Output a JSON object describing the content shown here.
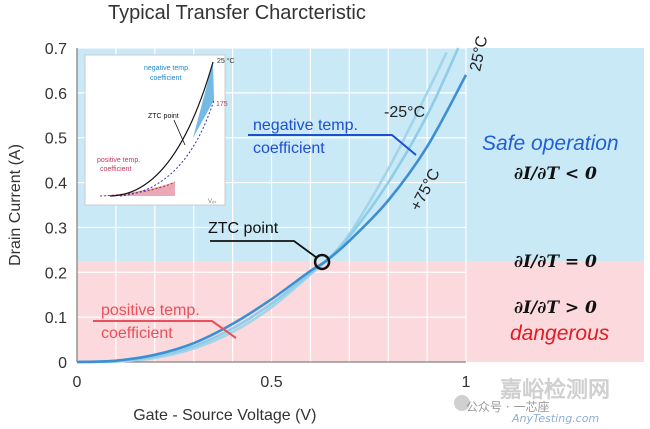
{
  "chart_data": {
    "type": "line",
    "title": "Typical Transfer Charcteristic",
    "xlabel": "Gate - Source Voltage (V)",
    "ylabel": "Drain Current (A)",
    "xlim": [
      0,
      1
    ],
    "ylim": [
      0,
      0.7
    ],
    "x_ticks": [
      {
        "v": 0,
        "label": "0"
      },
      {
        "v": 0.5,
        "label": "0.5"
      },
      {
        "v": 1,
        "label": "1"
      }
    ],
    "y_ticks": [
      {
        "v": 0,
        "label": "0"
      },
      {
        "v": 0.1,
        "label": "0.1"
      },
      {
        "v": 0.2,
        "label": "0.2"
      },
      {
        "v": 0.3,
        "label": "0.3"
      },
      {
        "v": 0.4,
        "label": "0.4"
      },
      {
        "v": 0.5,
        "label": "0.5"
      },
      {
        "v": 0.6,
        "label": "0.6"
      },
      {
        "v": 0.7,
        "label": "0.7"
      }
    ],
    "grid": true,
    "regions": [
      {
        "from": 0.225,
        "to": 0.7,
        "color": "#c9e9f7"
      },
      {
        "from": 0,
        "to": 0.225,
        "color": "#fbd9dc"
      }
    ],
    "series": [
      {
        "name": "25°C",
        "color": "#8ecde8",
        "points": [
          [
            0,
            0
          ],
          [
            0.1,
            0.002
          ],
          [
            0.2,
            0.012
          ],
          [
            0.3,
            0.035
          ],
          [
            0.4,
            0.075
          ],
          [
            0.5,
            0.13
          ],
          [
            0.6,
            0.198
          ],
          [
            0.64,
            0.225
          ],
          [
            0.7,
            0.28
          ],
          [
            0.8,
            0.4
          ],
          [
            0.9,
            0.55
          ],
          [
            0.98,
            0.7
          ]
        ]
      },
      {
        "name": "-25°C",
        "color": "#3d8fd3",
        "points": [
          [
            0,
            0
          ],
          [
            0.1,
            0.003
          ],
          [
            0.2,
            0.016
          ],
          [
            0.3,
            0.042
          ],
          [
            0.4,
            0.085
          ],
          [
            0.5,
            0.14
          ],
          [
            0.6,
            0.203
          ],
          [
            0.64,
            0.225
          ],
          [
            0.7,
            0.27
          ],
          [
            0.8,
            0.36
          ],
          [
            0.9,
            0.48
          ],
          [
            1.0,
            0.64
          ]
        ]
      },
      {
        "name": "+75°C",
        "color": "#a3d4ea",
        "points": [
          [
            0,
            0
          ],
          [
            0.1,
            0.001
          ],
          [
            0.2,
            0.009
          ],
          [
            0.3,
            0.03
          ],
          [
            0.4,
            0.067
          ],
          [
            0.5,
            0.122
          ],
          [
            0.6,
            0.195
          ],
          [
            0.64,
            0.225
          ],
          [
            0.7,
            0.285
          ],
          [
            0.8,
            0.43
          ],
          [
            0.9,
            0.6
          ],
          [
            0.95,
            0.69
          ]
        ]
      }
    ],
    "ztc_point": {
      "x": 0.63,
      "y": 0.223,
      "label": "ZTC point"
    },
    "annotations": {
      "neg_coef": [
        "negative temp.",
        "coefficient"
      ],
      "pos_coef": [
        "positive temp.",
        "coefficient"
      ],
      "t25": "25°C",
      "tm25": "-25°C",
      "t75": "+75°C"
    },
    "side_labels": {
      "safe": "Safe operation",
      "eq_gt_neg": "∂I/∂T < 0",
      "eq_zero": "∂I/∂T = 0",
      "eq_gt_pos": "∂I/∂T > 0",
      "danger": "dangerous"
    },
    "inset": {
      "labels": {
        "neg": [
          "negative temp.",
          "coefficient"
        ],
        "ztc": "ZTC point",
        "pos": [
          "positive temp.",
          "coefficient"
        ],
        "t25": "25 °C",
        "t175": "175",
        "vgs": "Vₑₛ"
      }
    }
  },
  "watermark": {
    "cn": "嘉峪检测网",
    "sub": "公众号 · 一芯座",
    "site": "AnyTesting.com"
  }
}
